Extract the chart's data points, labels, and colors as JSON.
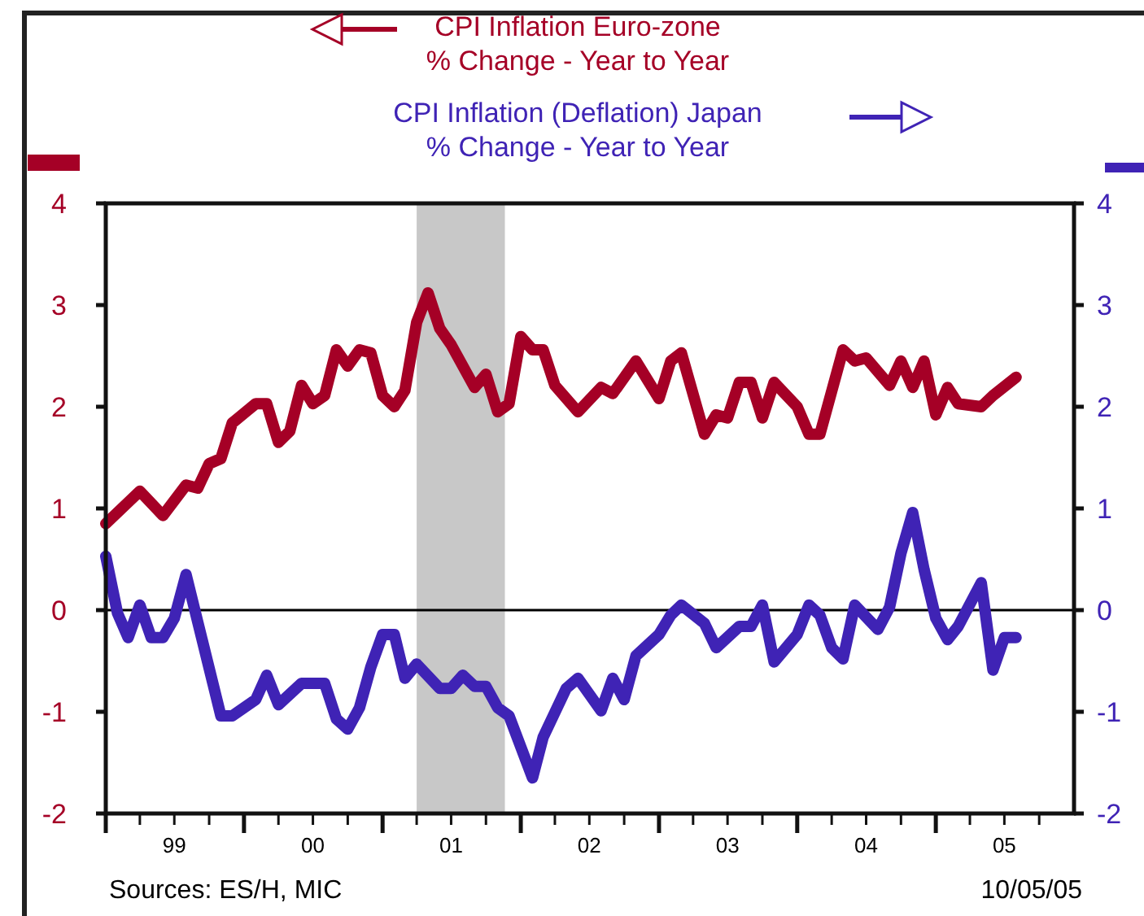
{
  "chart_data": {
    "type": "line",
    "legend": "top",
    "xlim": [
      "1999-01",
      "2006-01"
    ],
    "xticks": [
      {
        "value": "1999-01",
        "label": null
      },
      {
        "value": "1999-04",
        "label": null
      },
      {
        "value": "1999-07",
        "label": "99"
      },
      {
        "value": "1999-10",
        "label": null
      },
      {
        "value": "2000-01",
        "label": null
      },
      {
        "value": "2000-04",
        "label": null
      },
      {
        "value": "2000-07",
        "label": "00"
      },
      {
        "value": "2000-10",
        "label": null
      },
      {
        "value": "2001-01",
        "label": null
      },
      {
        "value": "2001-04",
        "label": null
      },
      {
        "value": "2001-07",
        "label": "01"
      },
      {
        "value": "2001-10",
        "label": null
      },
      {
        "value": "2002-01",
        "label": null
      },
      {
        "value": "2002-04",
        "label": null
      },
      {
        "value": "2002-07",
        "label": "02"
      },
      {
        "value": "2002-10",
        "label": null
      },
      {
        "value": "2003-01",
        "label": null
      },
      {
        "value": "2003-04",
        "label": null
      },
      {
        "value": "2003-07",
        "label": "03"
      },
      {
        "value": "2003-10",
        "label": null
      },
      {
        "value": "2004-01",
        "label": null
      },
      {
        "value": "2004-04",
        "label": null
      },
      {
        "value": "2004-07",
        "label": "04"
      },
      {
        "value": "2004-10",
        "label": null
      },
      {
        "value": "2005-01",
        "label": null
      },
      {
        "value": "2005-04",
        "label": null
      },
      {
        "value": "2005-07",
        "label": "05"
      },
      {
        "value": "2005-10",
        "label": null
      }
    ],
    "ylim": [
      -2,
      4
    ],
    "yticks": [
      -2,
      -1,
      0,
      1,
      2,
      3,
      4
    ],
    "y2lim": [
      -2,
      4
    ],
    "y2ticks": [
      -2,
      -1,
      0,
      1,
      2,
      3,
      4
    ],
    "series": [
      {
        "name": "CPI Inflation Euro-zone",
        "color": "#a50026",
        "x": [
          "1999-01",
          "1999-04",
          "1999-06",
          "1999-08",
          "1999-09",
          "1999-10",
          "1999-11",
          "1999-12",
          "2000-02",
          "2000-03",
          "2000-04",
          "2000-05",
          "2000-06",
          "2000-07",
          "2000-08",
          "2000-09",
          "2000-10",
          "2000-11",
          "2000-12",
          "2001-01",
          "2001-02",
          "2001-03",
          "2001-04",
          "2001-05",
          "2001-06",
          "2001-07",
          "2001-09",
          "2001-10",
          "2001-11",
          "2001-12",
          "2002-01",
          "2002-02",
          "2002-03",
          "2002-04",
          "2002-06",
          "2002-08",
          "2002-09",
          "2002-11",
          "2003-01",
          "2003-02",
          "2003-03",
          "2003-05",
          "2003-06",
          "2003-07",
          "2003-08",
          "2003-09",
          "2003-10",
          "2003-11",
          "2004-01",
          "2004-02",
          "2004-03",
          "2004-05",
          "2004-06",
          "2004-07",
          "2004-09",
          "2004-10",
          "2004-11",
          "2004-12",
          "2005-01",
          "2005-02",
          "2005-03",
          "2005-05",
          "2005-06",
          "2005-08"
        ],
        "values": [
          0.85,
          1.17,
          0.93,
          1.23,
          1.2,
          1.44,
          1.49,
          1.84,
          2.03,
          2.03,
          1.65,
          1.76,
          2.21,
          2.03,
          2.11,
          2.56,
          2.4,
          2.56,
          2.53,
          2.11,
          2.0,
          2.16,
          2.83,
          3.12,
          2.77,
          2.61,
          2.19,
          2.32,
          1.95,
          2.03,
          2.69,
          2.56,
          2.56,
          2.21,
          1.95,
          2.19,
          2.13,
          2.45,
          2.08,
          2.45,
          2.53,
          1.73,
          1.92,
          1.89,
          2.24,
          2.24,
          1.89,
          2.24,
          2.0,
          1.73,
          1.73,
          2.56,
          2.45,
          2.48,
          2.21,
          2.45,
          2.19,
          2.45,
          1.92,
          2.19,
          2.03,
          2.0,
          2.11,
          2.29
        ]
      },
      {
        "name": "CPI Inflation (Deflation) Japan",
        "color": "#3f23b5",
        "axis": "y2",
        "x": [
          "1999-01",
          "1999-02",
          "1999-03",
          "1999-04",
          "1999-05",
          "1999-06",
          "1999-07",
          "1999-08",
          "1999-11",
          "1999-12",
          "2000-02",
          "2000-03",
          "2000-04",
          "2000-06",
          "2000-08",
          "2000-09",
          "2000-10",
          "2000-11",
          "2000-12",
          "2001-01",
          "2001-02",
          "2001-03",
          "2001-04",
          "2001-06",
          "2001-07",
          "2001-08",
          "2001-09",
          "2001-10",
          "2001-11",
          "2001-12",
          "2002-02",
          "2002-03",
          "2002-05",
          "2002-06",
          "2002-08",
          "2002-09",
          "2002-10",
          "2002-11",
          "2003-01",
          "2003-02",
          "2003-03",
          "2003-05",
          "2003-06",
          "2003-08",
          "2003-09",
          "2003-10",
          "2003-11",
          "2004-01",
          "2004-02",
          "2004-03",
          "2004-04",
          "2004-05",
          "2004-06",
          "2004-08",
          "2004-09",
          "2004-10",
          "2004-11",
          "2004-12",
          "2005-01",
          "2005-02",
          "2005-03",
          "2005-05",
          "2005-06",
          "2005-07",
          "2005-08"
        ],
        "values": [
          0.53,
          -0.03,
          -0.27,
          0.05,
          -0.27,
          -0.27,
          -0.08,
          0.35,
          -1.04,
          -1.04,
          -0.88,
          -0.64,
          -0.93,
          -0.72,
          -0.72,
          -1.07,
          -1.17,
          -0.96,
          -0.56,
          -0.24,
          -0.24,
          -0.67,
          -0.53,
          -0.77,
          -0.77,
          -0.64,
          -0.75,
          -0.75,
          -0.96,
          -1.04,
          -1.65,
          -1.25,
          -0.77,
          -0.67,
          -0.99,
          -0.67,
          -0.88,
          -0.45,
          -0.24,
          -0.05,
          0.05,
          -0.13,
          -0.37,
          -0.16,
          -0.16,
          0.05,
          -0.51,
          -0.24,
          0.05,
          -0.05,
          -0.37,
          -0.48,
          0.05,
          -0.19,
          0.03,
          0.56,
          0.96,
          0.4,
          -0.08,
          -0.29,
          -0.16,
          0.27,
          -0.59,
          -0.27,
          -0.27
        ]
      }
    ],
    "ref_lines": [
      {
        "axis": "y",
        "value": 0,
        "color": "#000000"
      }
    ],
    "bands": [
      {
        "axis": "x",
        "from": "2001-04",
        "to": "2001-11-20",
        "color": "#c8c8c8"
      }
    ],
    "line_style": "solid",
    "marker": "none",
    "grid": false,
    "annotations": [
      "% Change - Year to Year",
      "% Change - Year to Year",
      "Sources: ES/H, MIC",
      "10/05/05"
    ]
  }
}
